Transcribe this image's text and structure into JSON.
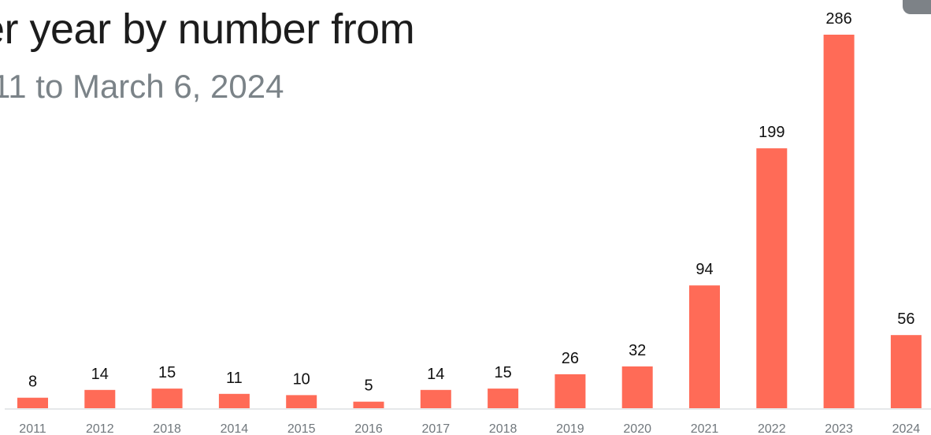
{
  "header": {
    "title": "er year by number from",
    "subtitle": "11 to March 6, 2024"
  },
  "chart_data": {
    "type": "bar",
    "title": "er year by number from",
    "subtitle": "11 to March 6, 2024",
    "categories": [
      "2011",
      "2012",
      "2018",
      "2014",
      "2015",
      "2016",
      "2017",
      "2018",
      "2019",
      "2020",
      "2021",
      "2022",
      "2023",
      "2024"
    ],
    "values": [
      8,
      14,
      15,
      11,
      10,
      5,
      14,
      15,
      26,
      32,
      94,
      199,
      286,
      56
    ],
    "data_labels": [
      "8",
      "14",
      "15",
      "11",
      "10",
      "5",
      "14",
      "15",
      "26",
      "32",
      "94",
      "199",
      "286",
      "56"
    ],
    "xlabel": "",
    "ylabel": "",
    "ylim": [
      0,
      300
    ],
    "grid": false,
    "legend": "none",
    "colors": {
      "bar": "#ff6b57",
      "baseline": "#e6e8ea",
      "label": "#111111",
      "tick": "#70777c"
    }
  }
}
